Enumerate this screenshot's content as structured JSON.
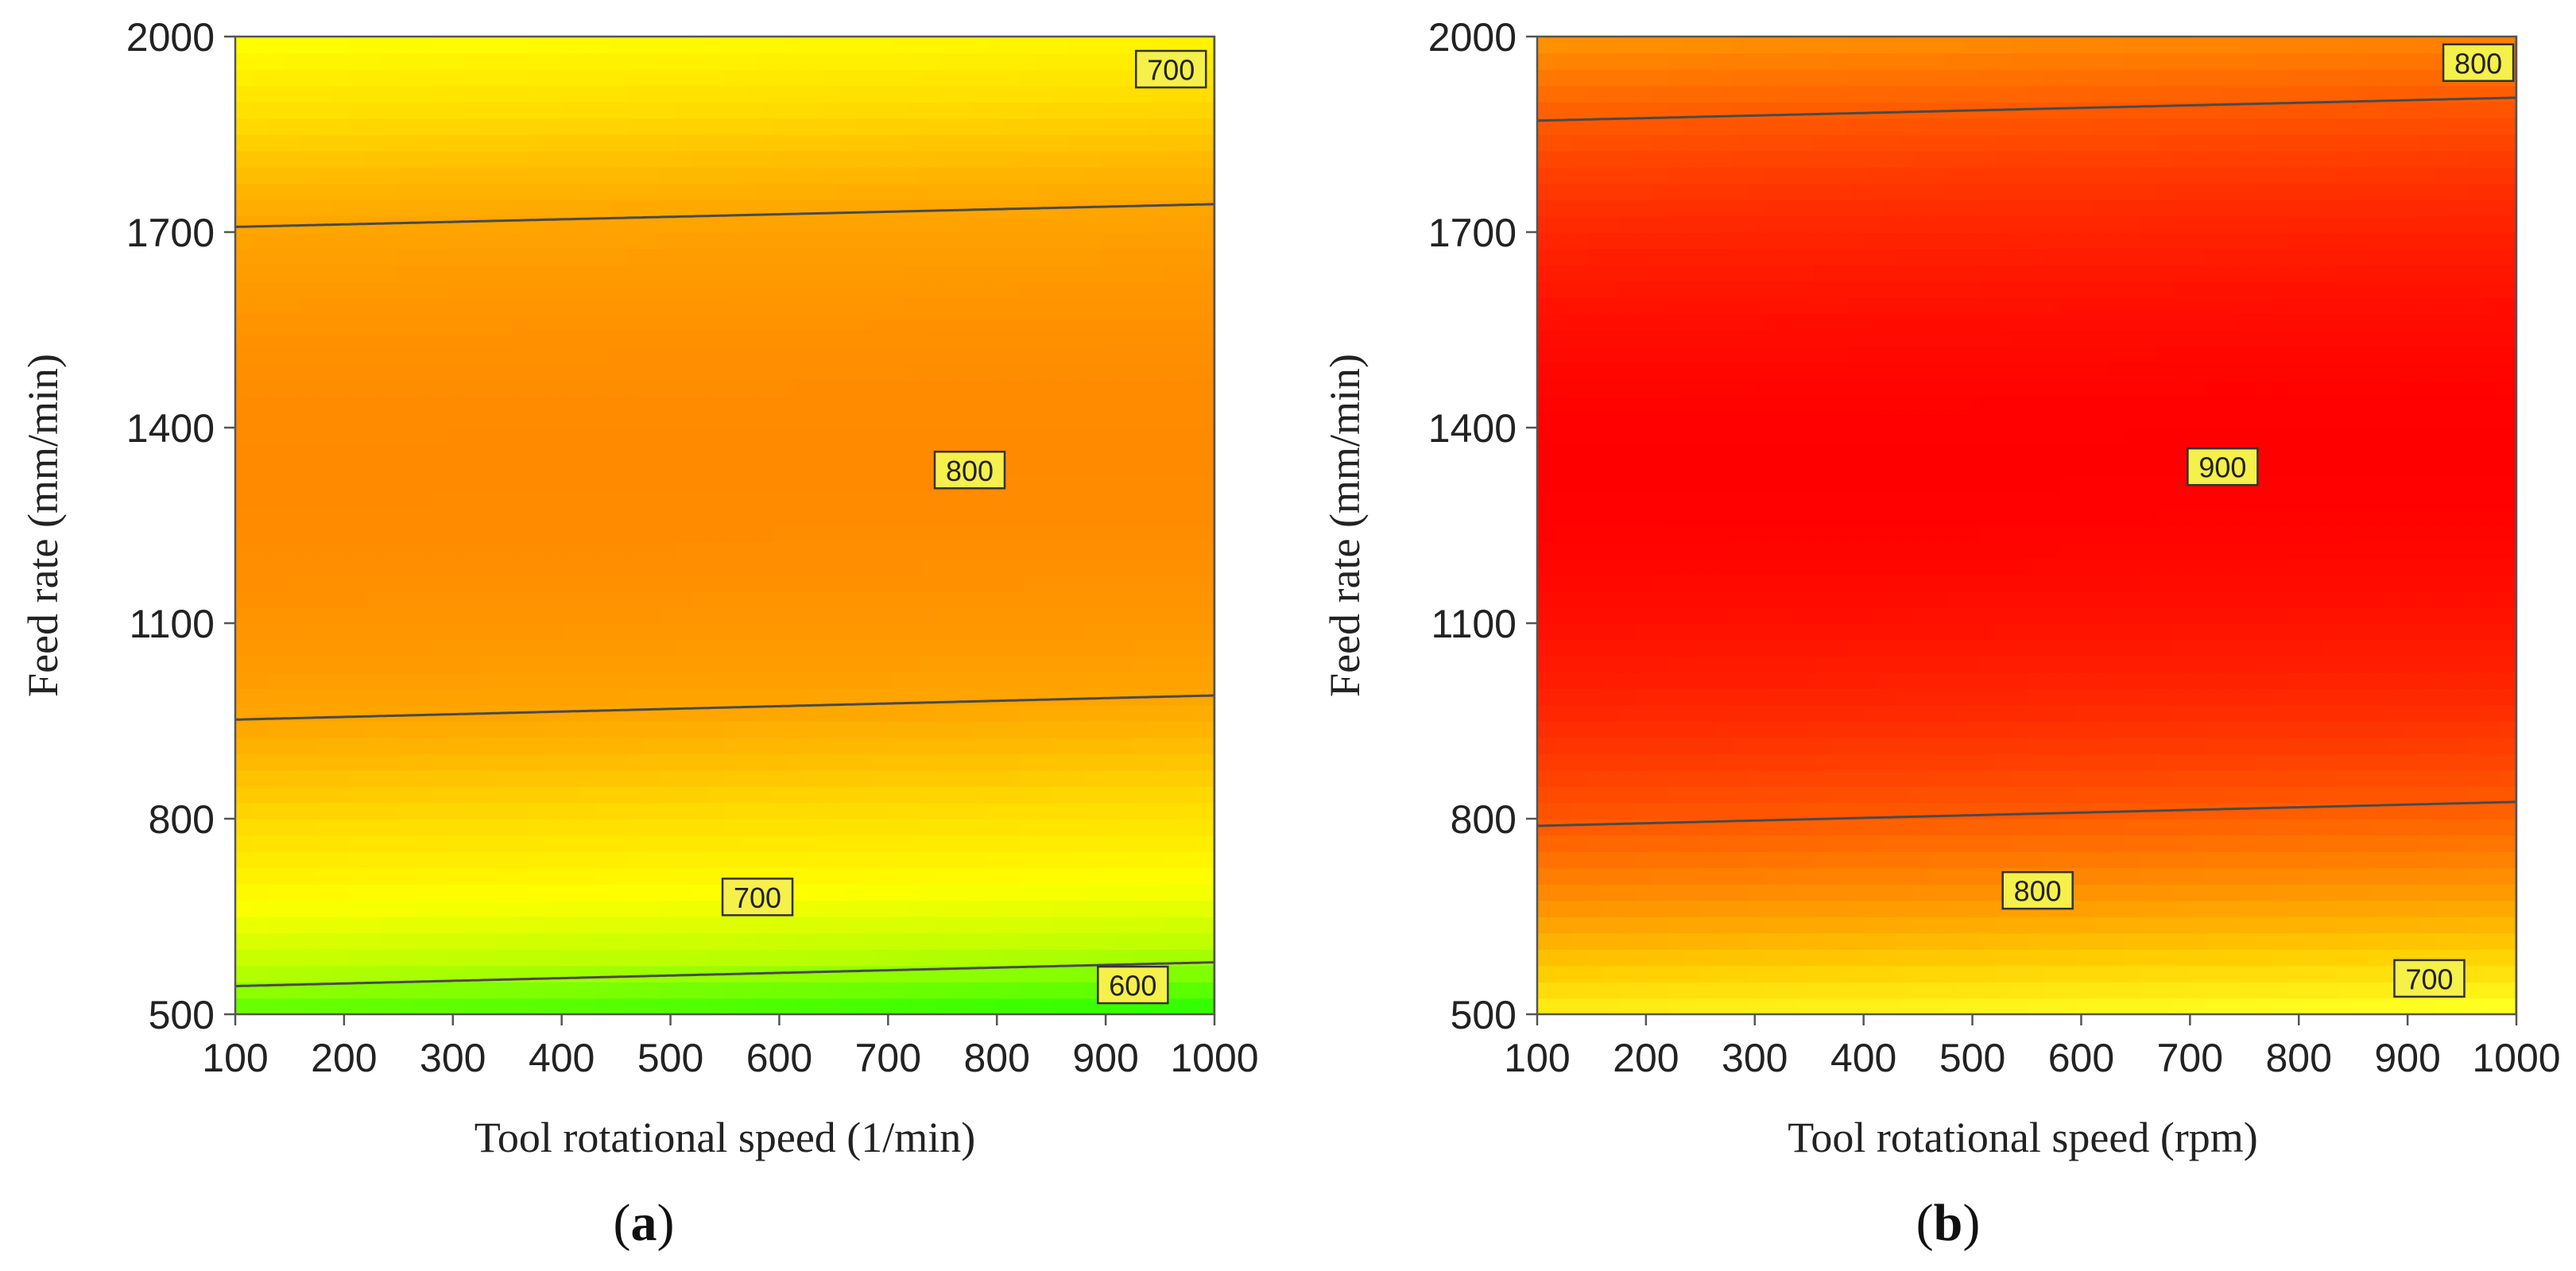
{
  "chart_data": [
    {
      "type": "contour",
      "panel_label": "a",
      "xlabel": "Tool rotational speed (1/min)",
      "ylabel": "Feed rate (mm/min)",
      "xlim": [
        100,
        1000
      ],
      "ylim": [
        500,
        2000
      ],
      "xticks": [
        "100",
        "200",
        "300",
        "400",
        "500",
        "600",
        "700",
        "800",
        "900",
        "1000"
      ],
      "yticks": [
        "500",
        "800",
        "1100",
        "1400",
        "1700",
        "2000"
      ],
      "colormap": [
        "#ff8a00",
        "#ffa600",
        "#ffdc00",
        "#ffff00",
        "#b8ff00",
        "#33ff00"
      ],
      "field": {
        "peak": 830,
        "peak_y": 1330,
        "ky": 0.00021,
        "kx": 0.00019,
        "xcurv": 1e-07
      },
      "contours": [
        {
          "level": 800,
          "label": "800",
          "label_at": {
            "x": 775,
            "y": 1335
          }
        },
        {
          "level": 700,
          "label": "700",
          "label_at": {
            "x": 580,
            "y": 680
          }
        },
        {
          "level": 700,
          "label": "700",
          "label_at": {
            "x": 960,
            "y": 1950
          }
        },
        {
          "level": 600,
          "label": "600",
          "label_at": {
            "x": 925,
            "y": 545
          }
        }
      ]
    },
    {
      "type": "contour",
      "panel_label": "b",
      "xlabel": "Tool rotational speed (rpm)",
      "ylabel": "Feed rate (mm/min)",
      "xlim": [
        100,
        1000
      ],
      "ylim": [
        500,
        2000
      ],
      "xticks": [
        "100",
        "200",
        "300",
        "400",
        "500",
        "600",
        "700",
        "800",
        "900",
        "1000"
      ],
      "yticks": [
        "500",
        "800",
        "1100",
        "1400",
        "1700",
        "2000"
      ],
      "colormap": [
        "#ff0000",
        "#ff2a00",
        "#ff5a00",
        "#ff9200",
        "#ffcc00",
        "#ffff20"
      ],
      "field": {
        "peak": 960,
        "peak_y": 1330,
        "ky": 0.000205,
        "kx": 0.00019,
        "xcurv": 1e-07
      },
      "contours": [
        {
          "level": 900,
          "label": "900",
          "label_at": {
            "x": 730,
            "y": 1340
          }
        },
        {
          "level": 800,
          "label": "800",
          "label_at": {
            "x": 560,
            "y": 690
          }
        },
        {
          "level": 800,
          "label": "800",
          "label_at": {
            "x": 965,
            "y": 1960
          }
        },
        {
          "level": 700,
          "label": "700",
          "label_at": {
            "x": 920,
            "y": 555
          }
        }
      ]
    }
  ]
}
